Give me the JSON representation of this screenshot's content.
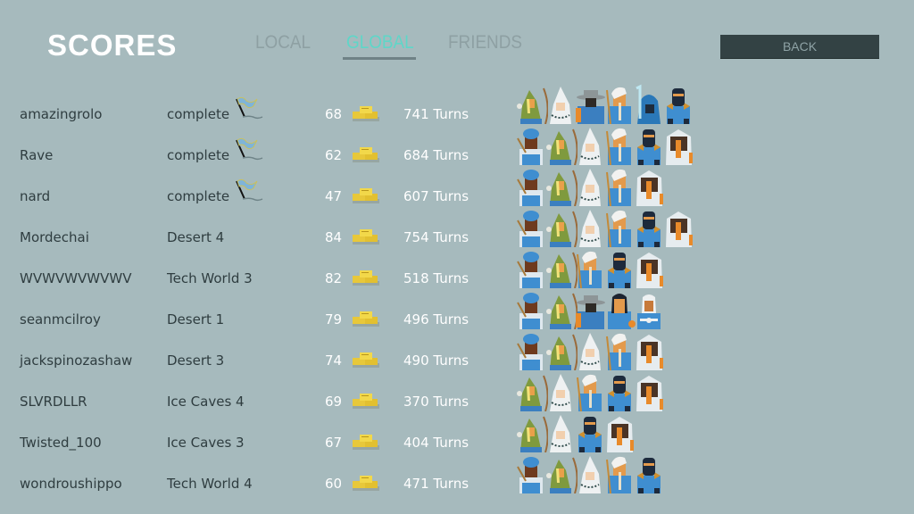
{
  "header": {
    "title": "SCORES",
    "tabs": [
      {
        "label": "LOCAL",
        "active": false
      },
      {
        "label": "GLOBAL",
        "active": true
      },
      {
        "label": "FRIENDS",
        "active": false
      }
    ],
    "back_label": "BACK"
  },
  "colors": {
    "background": "#a6babd",
    "active_tab": "#5fd6c8",
    "back_button": "#334244"
  },
  "rows": [
    {
      "name": "amazingrolo",
      "level": "complete",
      "flag": true,
      "score": "68",
      "turns": "741 Turns",
      "party": [
        "archer",
        "mage",
        "hatman",
        "elder",
        "icewitch",
        "ninja"
      ]
    },
    {
      "name": "Rave",
      "level": "complete",
      "flag": true,
      "score": "62",
      "turns": "684 Turns",
      "party": [
        "turban",
        "archer",
        "mage",
        "elder",
        "ninja",
        "furhood"
      ]
    },
    {
      "name": "nard",
      "level": "complete",
      "flag": true,
      "score": "47",
      "turns": "607 Turns",
      "party": [
        "turban",
        "archer",
        "mage",
        "elder",
        "furhood"
      ]
    },
    {
      "name": "Mordechai",
      "level": "Desert 4",
      "flag": false,
      "score": "84",
      "turns": "754 Turns",
      "party": [
        "turban",
        "archer",
        "mage",
        "elder",
        "ninja",
        "furhood"
      ]
    },
    {
      "name": "WVWVWVWVWV",
      "level": "Tech World 3",
      "flag": false,
      "score": "82",
      "turns": "518 Turns",
      "party": [
        "turban",
        "archer",
        "elder",
        "ninja",
        "furhood"
      ]
    },
    {
      "name": "seanmcilroy",
      "level": "Desert 1",
      "flag": false,
      "score": "79",
      "turns": "496 Turns",
      "party": [
        "turban",
        "archer",
        "hatman",
        "sailor",
        "monk"
      ]
    },
    {
      "name": "jackspinozashaw",
      "level": "Desert 3",
      "flag": false,
      "score": "74",
      "turns": "490 Turns",
      "party": [
        "turban",
        "archer",
        "mage",
        "elder",
        "furhood"
      ]
    },
    {
      "name": "SLVRDLLR",
      "level": "Ice Caves 4",
      "flag": false,
      "score": "69",
      "turns": "370 Turns",
      "party": [
        "archer",
        "mage",
        "elder",
        "ninja",
        "furhood"
      ]
    },
    {
      "name": "Twisted_100",
      "level": "Ice Caves 3",
      "flag": false,
      "score": "67",
      "turns": "404 Turns",
      "party": [
        "archer",
        "mage",
        "ninja",
        "furhood"
      ]
    },
    {
      "name": "wondroushippo",
      "level": "Tech World 4",
      "flag": false,
      "score": "60",
      "turns": "471 Turns",
      "party": [
        "turban",
        "archer",
        "mage",
        "elder",
        "ninja"
      ]
    }
  ]
}
